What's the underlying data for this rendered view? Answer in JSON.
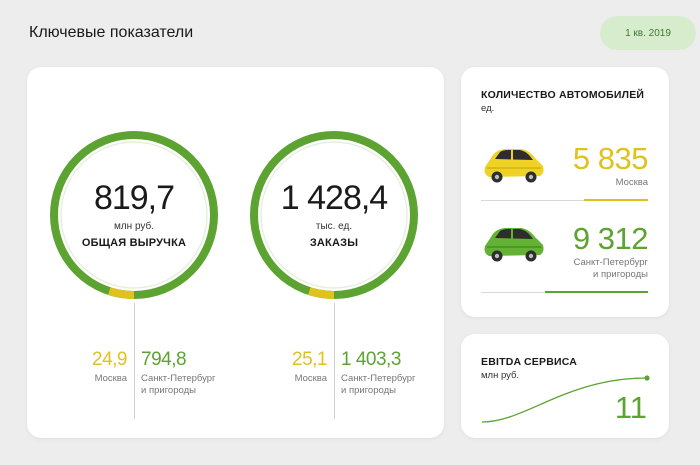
{
  "header": {
    "title": "Ключевые показатели",
    "period": "1 кв. 2019"
  },
  "colors": {
    "yellow": "#e0c21f",
    "green": "#5ca331",
    "light_green": "#d7eccd"
  },
  "revenue": {
    "value": "819,7",
    "unit": "млн руб.",
    "label": "ОБЩАЯ ВЫРУЧКА",
    "moscow": {
      "value": "24,9",
      "label": "Москва"
    },
    "spb": {
      "value": "794,8",
      "label_1": "Санкт-Петербург",
      "label_2": "и пригороды"
    },
    "moscow_share": 0.0304
  },
  "orders": {
    "value": "1 428,4",
    "unit": "тыс. ед.",
    "label": "ЗАКАЗЫ",
    "moscow": {
      "value": "25,1",
      "label": "Москва"
    },
    "spb": {
      "value": "1 403,3",
      "label_1": "Санкт-Петербург",
      "label_2": "и пригороды"
    },
    "moscow_share": 0.0176
  },
  "cars": {
    "title": "КОЛИЧЕСТВО АВТОМОБИЛЕЙ",
    "unit": "ед.",
    "moscow": {
      "value": "5 835",
      "label": "Москва",
      "icon": "yellow-car-icon",
      "share": 0.385
    },
    "spb": {
      "value": "9 312",
      "label_1": "Санкт-Петербург",
      "label_2": "и пригороды",
      "icon": "green-car-icon",
      "share": 0.615
    }
  },
  "ebitda": {
    "title": "EBITDA СЕРВИСА",
    "unit": "млн руб.",
    "value": "11"
  }
}
